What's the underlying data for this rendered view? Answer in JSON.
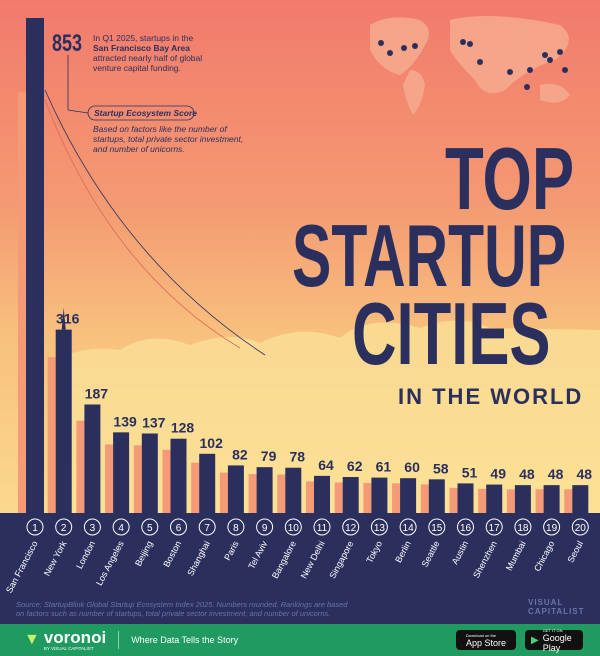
{
  "chart_data": {
    "type": "bar",
    "title": "TOP STARTUP CITIES",
    "subtitle": "IN THE WORLD",
    "ylabel": "Startup Ecosystem Score",
    "categories": [
      "San Francisco",
      "New York",
      "London",
      "Los Angeles",
      "Beijing",
      "Boston",
      "Shanghai",
      "Paris",
      "Tel Aviv",
      "Bangalore",
      "New Delhi",
      "Singapore",
      "Tokyo",
      "Berlin",
      "Seattle",
      "Austin",
      "Shenzhen",
      "Mumbai",
      "Chicago",
      "Seoul"
    ],
    "ranks": [
      "1",
      "2",
      "3",
      "4",
      "5",
      "6",
      "7",
      "8",
      "9",
      "10",
      "11",
      "12",
      "13",
      "14",
      "15",
      "16",
      "17",
      "18",
      "19",
      "20"
    ],
    "values": [
      853,
      316,
      187,
      139,
      137,
      128,
      102,
      82,
      79,
      78,
      64,
      62,
      61,
      60,
      58,
      51,
      49,
      48,
      48,
      48
    ],
    "ylim": [
      0,
      853
    ],
    "grid": false
  },
  "title": {
    "line1": "TOP",
    "line2": "STARTUP",
    "line3": "CITIES",
    "line4": "IN THE WORLD"
  },
  "annotation": {
    "value": "853",
    "line1": "In Q1 2025, startups in the",
    "line2_bold": "San Francisco Bay Area",
    "line3": "attracted nearly half of global",
    "line4": "venture capital funding."
  },
  "legend": {
    "label": "Startup Ecosystem Score",
    "desc1": "Based on factors like the number of",
    "desc2": "startups, total private sector investment,",
    "desc3": "and number of unicorns."
  },
  "source": {
    "line1": "Source: StartupBlink Global Startup Ecosystem Index 2025. Numbers rounded. Rankings are based",
    "line2": "on factors such as number of startups, total private sector investment, and number of unicorns."
  },
  "brand": {
    "vc1": "VISUAL",
    "vc2": "CAPITALIST",
    "voronoi": "voronoi",
    "by": "BY VISUAL CAPITALIST",
    "tagline": "Where Data Tells the Story",
    "appstore_small": "Download on the",
    "appstore": "App Store",
    "gplay_small": "GET IT ON",
    "gplay": "Google Play"
  },
  "colors": {
    "navy": "#2b2f5e",
    "green": "#1f9a60",
    "sky_top": "#f27a6c",
    "sky_bottom": "#fbd98e"
  }
}
